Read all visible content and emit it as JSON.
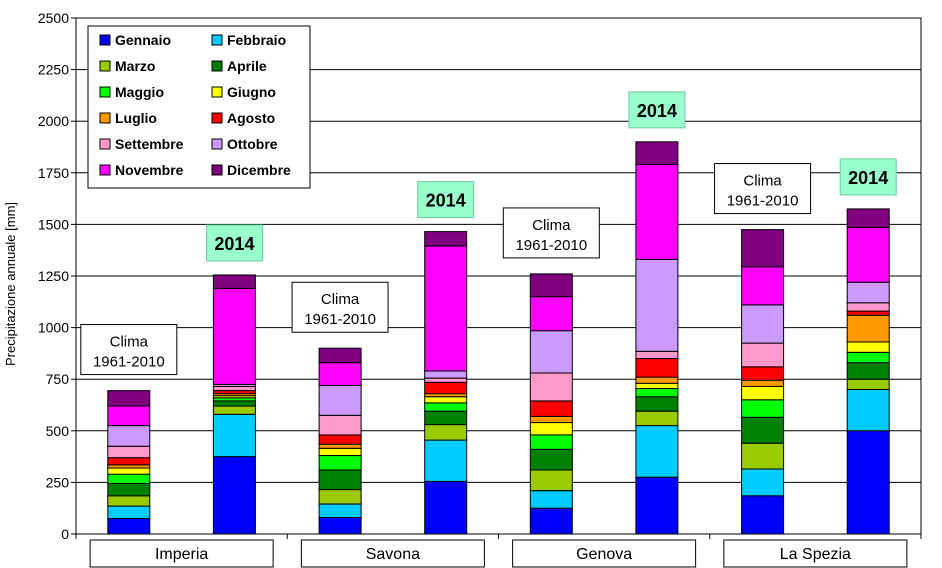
{
  "chart_data": {
    "type": "bar",
    "stacked": true,
    "ylabel": "Precipitazione annuale [mm]",
    "ylim": [
      0,
      2500
    ],
    "yticks": [
      0,
      250,
      500,
      750,
      1000,
      1250,
      1500,
      1750,
      2000,
      2250,
      2500
    ],
    "grid": true,
    "legend_position": "top-left",
    "groups": [
      "Imperia",
      "Savona",
      "Genova",
      "La Spezia"
    ],
    "bar_labels": {
      "clima_line1": "Clima",
      "clima_line2": "1961-2010",
      "year": "2014"
    },
    "categories": [
      "Imperia Clima",
      "Imperia 2014",
      "Savona Clima",
      "Savona 2014",
      "Genova Clima",
      "Genova 2014",
      "La Spezia Clima",
      "La Spezia 2014"
    ],
    "series": [
      {
        "name": "Gennaio",
        "color": "#0000FF",
        "values": [
          75,
          375,
          80,
          255,
          125,
          275,
          185,
          500
        ]
      },
      {
        "name": "Febbraio",
        "color": "#00CCFF",
        "values": [
          60,
          205,
          65,
          200,
          85,
          250,
          130,
          200
        ]
      },
      {
        "name": "Marzo",
        "color": "#99CC00",
        "values": [
          50,
          40,
          70,
          75,
          100,
          70,
          125,
          50
        ]
      },
      {
        "name": "Aprile",
        "color": "#008000",
        "values": [
          60,
          25,
          95,
          65,
          100,
          70,
          125,
          80
        ]
      },
      {
        "name": "Maggio",
        "color": "#00FF00",
        "values": [
          45,
          15,
          70,
          40,
          70,
          40,
          85,
          50
        ]
      },
      {
        "name": "Giugno",
        "color": "#FFFF00",
        "values": [
          30,
          10,
          35,
          30,
          60,
          25,
          65,
          50
        ]
      },
      {
        "name": "Luglio",
        "color": "#FF9900",
        "values": [
          15,
          10,
          20,
          15,
          30,
          30,
          30,
          130
        ]
      },
      {
        "name": "Agosto",
        "color": "#FF0000",
        "values": [
          35,
          15,
          45,
          55,
          75,
          90,
          65,
          20
        ]
      },
      {
        "name": "Settembre",
        "color": "#FF99CC",
        "values": [
          55,
          20,
          95,
          20,
          135,
          35,
          115,
          40
        ]
      },
      {
        "name": "Ottobre",
        "color": "#CC99FF",
        "values": [
          100,
          10,
          145,
          35,
          205,
          445,
          185,
          100
        ]
      },
      {
        "name": "Novembre",
        "color": "#FF00FF",
        "values": [
          95,
          465,
          110,
          605,
          165,
          460,
          185,
          265
        ]
      },
      {
        "name": "Dicembre",
        "color": "#800080",
        "values": [
          75,
          65,
          70,
          70,
          110,
          110,
          180,
          90
        ]
      }
    ]
  }
}
